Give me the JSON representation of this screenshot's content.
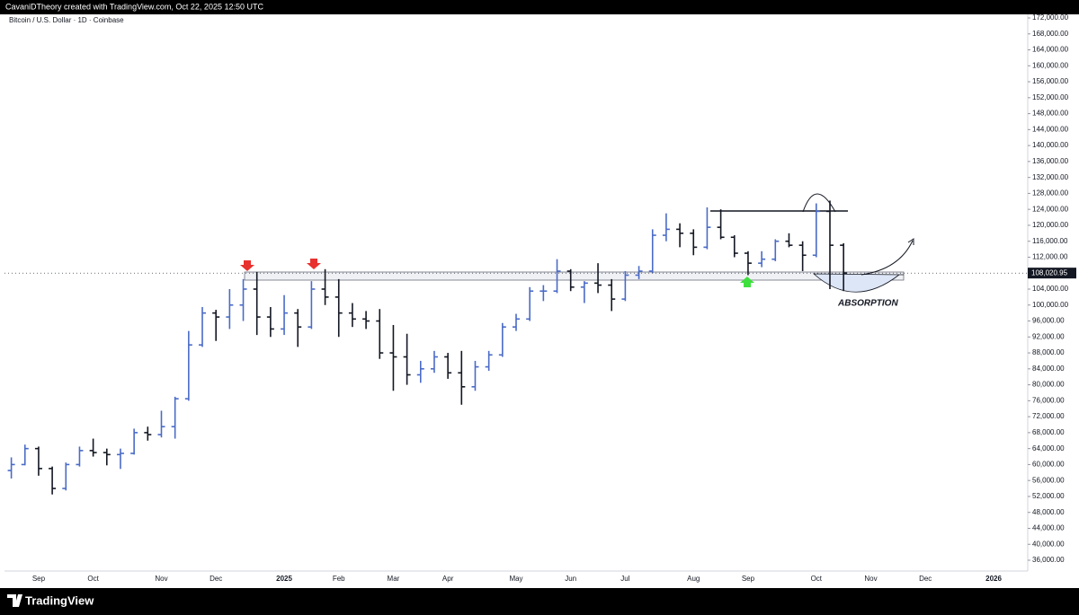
{
  "chart_data": {
    "type": "ohlc",
    "header": "CavaniDTheory created with TradingView.com, Oct 22, 2025 12:50 UTC",
    "title": "Bitcoin / U.S. Dollar · 1D · Coinbase",
    "annotation": "ABSORPTION",
    "footer": "TradingView",
    "up_color": "#4a6bc7",
    "down_color": "#131722",
    "categories": [
      null,
      null,
      "Sep",
      null,
      null,
      null,
      "Oct",
      null,
      null,
      null,
      null,
      "Nov",
      null,
      null,
      null,
      "Dec",
      null,
      null,
      null,
      null,
      "2025",
      null,
      null,
      null,
      "Feb",
      null,
      null,
      null,
      "Mar",
      null,
      null,
      null,
      "Apr",
      null,
      null,
      null,
      null,
      "May",
      null,
      null,
      null,
      "Jun",
      null,
      null,
      null,
      "Jul",
      null,
      null,
      null,
      null,
      "Aug",
      null,
      null,
      null,
      "Sep",
      null,
      null,
      null,
      null,
      "Oct",
      null,
      null,
      null,
      "Nov",
      null,
      null,
      null,
      "Dec",
      null,
      null,
      null,
      null,
      "2026",
      null,
      null
    ],
    "series": {
      "open": [
        58500,
        60000,
        64000,
        59000,
        54000,
        60000,
        63500,
        63000,
        62500,
        62800,
        68000,
        67500,
        69500,
        76500,
        90000,
        98000,
        97000,
        100000,
        104000,
        97000,
        94000,
        98000,
        94500,
        104000,
        102000,
        98000,
        96500,
        96000,
        88000,
        87000,
        82500,
        84000,
        87000,
        83000,
        79500,
        84500,
        87500,
        94500,
        96500,
        103500,
        103500,
        108500,
        104500,
        105500,
        105000,
        101500,
        107500,
        108500,
        117500,
        119000,
        118000,
        114500,
        119500,
        117000,
        113000,
        110500,
        111500,
        116000,
        115000,
        112500,
        123500,
        115000,
        null,
        null,
        null,
        null,
        null,
        null,
        null,
        null,
        null,
        null,
        null,
        null,
        null
      ],
      "high": [
        61800,
        65000,
        64500,
        59500,
        60500,
        64500,
        66500,
        64000,
        64000,
        69000,
        69500,
        73500,
        77000,
        93500,
        99500,
        98800,
        104000,
        106500,
        108300,
        99500,
        102500,
        99000,
        106000,
        109000,
        106500,
        100500,
        98500,
        99000,
        95000,
        92800,
        86000,
        88500,
        88000,
        88500,
        86000,
        88500,
        95500,
        97800,
        104500,
        105000,
        111500,
        109000,
        106000,
        110500,
        106500,
        108500,
        109800,
        119000,
        123000,
        120500,
        119000,
        124500,
        124000,
        117500,
        113500,
        113500,
        116500,
        118000,
        116000,
        125500,
        126200,
        115500,
        null,
        null,
        null,
        null,
        null,
        null,
        null,
        null,
        null,
        null,
        null,
        null,
        null
      ],
      "low": [
        56500,
        59800,
        57200,
        52500,
        53500,
        59500,
        62000,
        59800,
        58900,
        62500,
        66000,
        66800,
        66500,
        76000,
        89500,
        91000,
        94000,
        96000,
        92500,
        92000,
        92500,
        89500,
        94000,
        100000,
        92000,
        94500,
        94000,
        86500,
        78500,
        80000,
        80500,
        83000,
        81500,
        75000,
        78500,
        83500,
        87000,
        93500,
        96000,
        101000,
        103000,
        103500,
        100500,
        103000,
        98500,
        101000,
        106500,
        108000,
        116000,
        114500,
        112500,
        114000,
        116500,
        112000,
        107500,
        109500,
        111000,
        114500,
        108500,
        112000,
        104000,
        103500,
        null,
        null,
        null,
        null,
        null,
        null,
        null,
        null,
        null,
        null,
        null,
        null,
        null
      ],
      "close": [
        60000,
        64000,
        59000,
        54000,
        60000,
        63500,
        63000,
        62500,
        62800,
        68000,
        67500,
        69500,
        76500,
        90000,
        98000,
        97000,
        100000,
        104000,
        97000,
        94000,
        98000,
        94500,
        104000,
        102000,
        98000,
        96500,
        96000,
        88000,
        87000,
        82500,
        84000,
        87000,
        83000,
        79500,
        84500,
        87500,
        94500,
        96500,
        103500,
        103500,
        108500,
        104500,
        105500,
        105000,
        101500,
        107500,
        108500,
        117500,
        119000,
        118000,
        114500,
        119500,
        117000,
        113000,
        110500,
        111500,
        116000,
        115000,
        112500,
        123500,
        115000,
        108020.95,
        null,
        null,
        null,
        null,
        null,
        null,
        null,
        null,
        null,
        null,
        null,
        null,
        null
      ]
    },
    "price_marker": {
      "value": 108020.95,
      "label": "108,020.95"
    },
    "ylim": [
      33300,
      172900
    ],
    "yticks": [
      {
        "value": 36000,
        "label": "36,000.00"
      },
      {
        "value": 40000,
        "label": "40,000.00"
      },
      {
        "value": 44000,
        "label": "44,000.00"
      },
      {
        "value": 48000,
        "label": "48,000.00"
      },
      {
        "value": 52000,
        "label": "52,000.00"
      },
      {
        "value": 56000,
        "label": "56,000.00"
      },
      {
        "value": 60000,
        "label": "60,000.00"
      },
      {
        "value": 64000,
        "label": "64,000.00"
      },
      {
        "value": 68000,
        "label": "68,000.00"
      },
      {
        "value": 72000,
        "label": "72,000.00"
      },
      {
        "value": 76000,
        "label": "76,000.00"
      },
      {
        "value": 80000,
        "label": "80,000.00"
      },
      {
        "value": 84000,
        "label": "84,000.00"
      },
      {
        "value": 88000,
        "label": "88,000.00"
      },
      {
        "value": 92000,
        "label": "92,000.00"
      },
      {
        "value": 96000,
        "label": "96,000.00"
      },
      {
        "value": 100000,
        "label": "100,000.00"
      },
      {
        "value": 104000,
        "label": "104,000.00"
      },
      {
        "value": 108000,
        "label": "108,000.00"
      },
      {
        "value": 112000,
        "label": "112,000.00"
      },
      {
        "value": 116000,
        "label": "116,000.00"
      },
      {
        "value": 120000,
        "label": "120,000.00"
      },
      {
        "value": 124000,
        "label": "124,000.00"
      },
      {
        "value": 128000,
        "label": "128,000.00"
      },
      {
        "value": 132000,
        "label": "132,000.00"
      },
      {
        "value": 136000,
        "label": "136,000.00"
      },
      {
        "value": 140000,
        "label": "140,000.00"
      },
      {
        "value": 144000,
        "label": "144,000.00"
      },
      {
        "value": 148000,
        "label": "148,000.00"
      },
      {
        "value": 152000,
        "label": "152,000.00"
      },
      {
        "value": 156000,
        "label": "156,000.00"
      },
      {
        "value": 160000,
        "label": "160,000.00"
      },
      {
        "value": 164000,
        "label": "164,000.00"
      },
      {
        "value": 168000,
        "label": "168,000.00"
      },
      {
        "value": 172000,
        "label": "172,000.00"
      }
    ]
  }
}
